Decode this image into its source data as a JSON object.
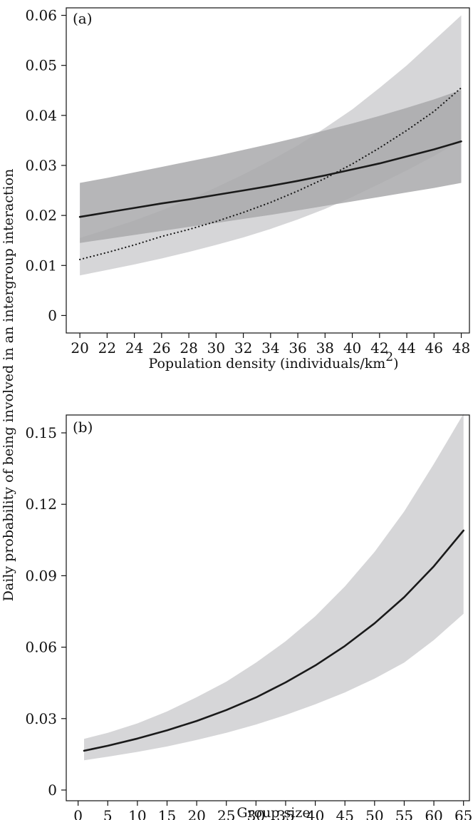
{
  "figure": {
    "ylabel": "Daily probability of being involved in an intergroup interaction",
    "colors": {
      "light_band": "#d6d6d8",
      "dark_band": "#a9a9ac",
      "line": "#1a1a1a"
    }
  },
  "chart_data": [
    {
      "type": "line",
      "panel_label": "(a)",
      "xlabel": "Population density (individuals/km",
      "xlabel_superscript": "2",
      "xlabel_suffix": ")",
      "xlim": [
        19,
        48.6
      ],
      "ylim": [
        -0.0035,
        0.0615
      ],
      "x_ticks": [
        20,
        22,
        24,
        26,
        28,
        30,
        32,
        34,
        36,
        38,
        40,
        42,
        44,
        46,
        48
      ],
      "x_tick_labels": [
        "20",
        "22",
        "24",
        "26",
        "28",
        "30",
        "32",
        "34",
        "36",
        "38",
        "40",
        "42",
        "44",
        "46",
        "48"
      ],
      "y_ticks": [
        0,
        0.01,
        0.02,
        0.03,
        0.04,
        0.05,
        0.06
      ],
      "y_tick_labels": [
        "0",
        "0.01",
        "0.02",
        "0.03",
        "0.04",
        "0.05",
        "0.06"
      ],
      "x": [
        20,
        22,
        24,
        26,
        28,
        30,
        32,
        34,
        36,
        38,
        40,
        42,
        44,
        46,
        48
      ],
      "series": [
        {
          "style": "dotted",
          "band_color": "light",
          "values": [
            0.0112,
            0.0126,
            0.0141,
            0.0158,
            0.0172,
            0.0188,
            0.0206,
            0.0226,
            0.0249,
            0.0274,
            0.0303,
            0.0335,
            0.037,
            0.0408,
            0.0455
          ],
          "lower": [
            0.008,
            0.0091,
            0.0102,
            0.0114,
            0.0127,
            0.0141,
            0.0156,
            0.0173,
            0.0192,
            0.0213,
            0.0237,
            0.0263,
            0.029,
            0.0319,
            0.035
          ],
          "upper": [
            0.0155,
            0.0172,
            0.019,
            0.021,
            0.0232,
            0.0256,
            0.0282,
            0.031,
            0.034,
            0.0375,
            0.0412,
            0.0455,
            0.05,
            0.055,
            0.06
          ]
        },
        {
          "style": "solid",
          "band_color": "dark",
          "values": [
            0.0197,
            0.0206,
            0.0215,
            0.0224,
            0.0232,
            0.0241,
            0.025,
            0.0259,
            0.0269,
            0.028,
            0.0292,
            0.0304,
            0.0318,
            0.0332,
            0.0348
          ],
          "lower": [
            0.0145,
            0.0153,
            0.0161,
            0.0169,
            0.0177,
            0.0185,
            0.0193,
            0.0201,
            0.021,
            0.0219,
            0.0228,
            0.0237,
            0.0246,
            0.0255,
            0.0265
          ],
          "upper": [
            0.0265,
            0.0275,
            0.0286,
            0.0297,
            0.0308,
            0.0319,
            0.0331,
            0.0343,
            0.0356,
            0.037,
            0.0384,
            0.0399,
            0.0415,
            0.0432,
            0.0451
          ]
        }
      ]
    },
    {
      "type": "line",
      "panel_label": "(b)",
      "xlabel": "Group size",
      "xlim": [
        -2,
        66
      ],
      "ylim": [
        -0.0045,
        0.1575
      ],
      "x_ticks": [
        0,
        5,
        10,
        15,
        20,
        25,
        30,
        35,
        40,
        45,
        50,
        55,
        60,
        65
      ],
      "x_tick_labels": [
        "0",
        "5",
        "10",
        "15",
        "20",
        "25",
        "30",
        "35",
        "40",
        "45",
        "50",
        "55",
        "60",
        "65"
      ],
      "y_ticks": [
        0,
        0.03,
        0.06,
        0.09,
        0.12,
        0.15
      ],
      "y_tick_labels": [
        "0",
        "0.03",
        "0.06",
        "0.09",
        "0.12",
        "0.15"
      ],
      "x": [
        1,
        5,
        10,
        15,
        20,
        25,
        30,
        35,
        40,
        45,
        50,
        55,
        60,
        65
      ],
      "series": [
        {
          "style": "solid",
          "band_color": "light",
          "values": [
            0.0165,
            0.0186,
            0.0216,
            0.0251,
            0.029,
            0.0336,
            0.0389,
            0.0452,
            0.0523,
            0.0605,
            0.07,
            0.081,
            0.094,
            0.109
          ],
          "lower": [
            0.0125,
            0.014,
            0.016,
            0.0183,
            0.021,
            0.024,
            0.0275,
            0.0315,
            0.036,
            0.041,
            0.0468,
            0.0535,
            0.063,
            0.074
          ],
          "upper": [
            0.0215,
            0.024,
            0.028,
            0.033,
            0.039,
            0.0455,
            0.0535,
            0.0625,
            0.073,
            0.0855,
            0.1,
            0.117,
            0.137,
            0.158
          ]
        }
      ]
    }
  ]
}
